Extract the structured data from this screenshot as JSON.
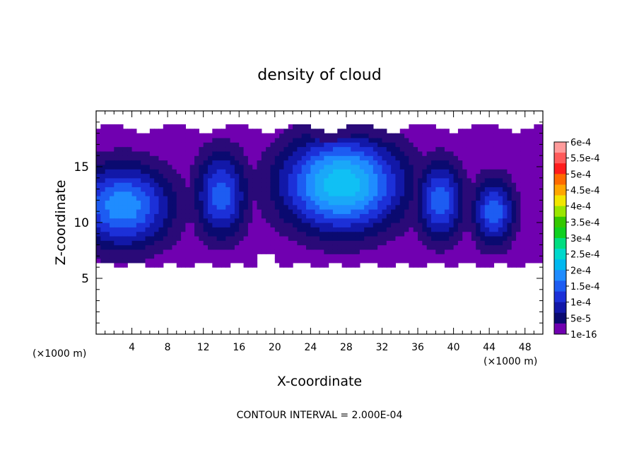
{
  "chart_data": {
    "type": "heatmap",
    "title": "density of cloud",
    "xlabel": "X-coordinate",
    "ylabel": "Z-coordinate",
    "x_unit_label": "(×1000 m)",
    "xlim": [
      0,
      50
    ],
    "ylim": [
      0,
      20
    ],
    "x_ticks": [
      4,
      8,
      12,
      16,
      20,
      24,
      28,
      32,
      36,
      40,
      44,
      48
    ],
    "y_ticks": [
      5,
      10,
      15
    ],
    "footnote": "CONTOUR INTERVAL = 2.000E-04",
    "colorbar": {
      "labels": [
        "6e-4",
        "5.5e-4",
        "5e-4",
        "4.5e-4",
        "4e-4",
        "3.5e-4",
        "3e-4",
        "2.5e-4",
        "2e-4",
        "1.5e-4",
        "1e-4",
        "5e-5",
        "1e-16"
      ],
      "colors": [
        "#ff9b9b",
        "#ff5a5a",
        "#ff1c1c",
        "#ff6a00",
        "#ffa600",
        "#f2e600",
        "#9ae600",
        "#34c800",
        "#10d020",
        "#00dd80",
        "#00d8cc",
        "#00b8f0",
        "#1f8cff",
        "#1d5cf2",
        "#1c30d8",
        "#1218a8",
        "#0a0a70",
        "#7000b0"
      ]
    },
    "fields": {
      "background_level": 1e-16,
      "cloud_extent": {
        "x": [
          0,
          50
        ],
        "z_bottom_approx": 6.2,
        "z_top_approx": 18.5
      },
      "peaks": [
        {
          "x": 27.5,
          "z": 13.5,
          "value": 0.000155
        },
        {
          "x": 3.0,
          "z": 11.5,
          "value": 0.00012
        },
        {
          "x": 14.0,
          "z": 12.5,
          "value": 0.0001
        },
        {
          "x": 38.5,
          "z": 12.0,
          "value": 0.0001
        },
        {
          "x": 44.5,
          "z": 11.0,
          "value": 0.0001
        }
      ]
    }
  }
}
